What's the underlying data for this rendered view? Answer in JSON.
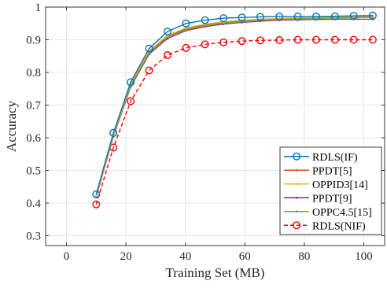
{
  "chart_data": {
    "type": "line",
    "xlabel": "Training Set (MB)",
    "ylabel": "Accuracy",
    "xlim": [
      -7,
      107
    ],
    "ylim": [
      0.27,
      1.0
    ],
    "xticks": [
      0,
      20,
      40,
      60,
      80,
      100
    ],
    "yticks": [
      0.3,
      0.4,
      0.5,
      0.6,
      0.7,
      0.8,
      0.9,
      1
    ],
    "xtick_labels": [
      "0",
      "20",
      "40",
      "60",
      "80",
      "100"
    ],
    "ytick_labels": [
      "0.3",
      "0.4",
      "0.5",
      "0.6",
      "0.7",
      "0.8",
      "0.9",
      "1"
    ],
    "grid": true,
    "legend_position": "bottom-right",
    "x": [
      10,
      15.8,
      21.6,
      27.8,
      34,
      40.2,
      46.6,
      52.8,
      59,
      65.2,
      71.6,
      77.8,
      84,
      90.3,
      96.6,
      103
    ],
    "series": [
      {
        "name": "RDLS(IF)",
        "color": "#0072BD",
        "marker": "circle",
        "dash": "solid",
        "values": [
          0.427,
          0.615,
          0.77,
          0.873,
          0.925,
          0.95,
          0.96,
          0.966,
          0.968,
          0.97,
          0.971,
          0.971,
          0.971,
          0.972,
          0.973,
          0.974
        ]
      },
      {
        "name": "PPDT[5]",
        "color": "#D95319",
        "marker": "point",
        "dash": "solid",
        "values": [
          0.42,
          0.608,
          0.762,
          0.862,
          0.91,
          0.933,
          0.945,
          0.953,
          0.958,
          0.962,
          0.964,
          0.966,
          0.967,
          0.968,
          0.97,
          0.972
        ]
      },
      {
        "name": "OPPID3[14]",
        "color": "#EDB120",
        "marker": "point",
        "dash": "solid",
        "values": [
          0.422,
          0.61,
          0.765,
          0.866,
          0.914,
          0.936,
          0.948,
          0.955,
          0.96,
          0.963,
          0.965,
          0.967,
          0.968,
          0.969,
          0.971,
          0.973
        ]
      },
      {
        "name": "PPDT[9]",
        "color": "#7E2F8E",
        "marker": "point",
        "dash": "solid",
        "values": [
          0.418,
          0.604,
          0.756,
          0.856,
          0.904,
          0.928,
          0.94,
          0.948,
          0.953,
          0.957,
          0.96,
          0.961,
          0.962,
          0.963,
          0.963,
          0.963
        ]
      },
      {
        "name": "OPPC4.5[15]",
        "color": "#77AC30",
        "marker": "point",
        "dash": "solid",
        "values": [
          0.421,
          0.607,
          0.76,
          0.86,
          0.908,
          0.931,
          0.943,
          0.951,
          0.956,
          0.96,
          0.962,
          0.964,
          0.965,
          0.966,
          0.967,
          0.969
        ]
      },
      {
        "name": "RDLS(NIF)",
        "color": "#FF0000",
        "marker": "circle",
        "dash": "dashed",
        "values": [
          0.396,
          0.57,
          0.712,
          0.806,
          0.853,
          0.875,
          0.886,
          0.892,
          0.896,
          0.898,
          0.899,
          0.9,
          0.9,
          0.9,
          0.9,
          0.9
        ]
      }
    ]
  }
}
